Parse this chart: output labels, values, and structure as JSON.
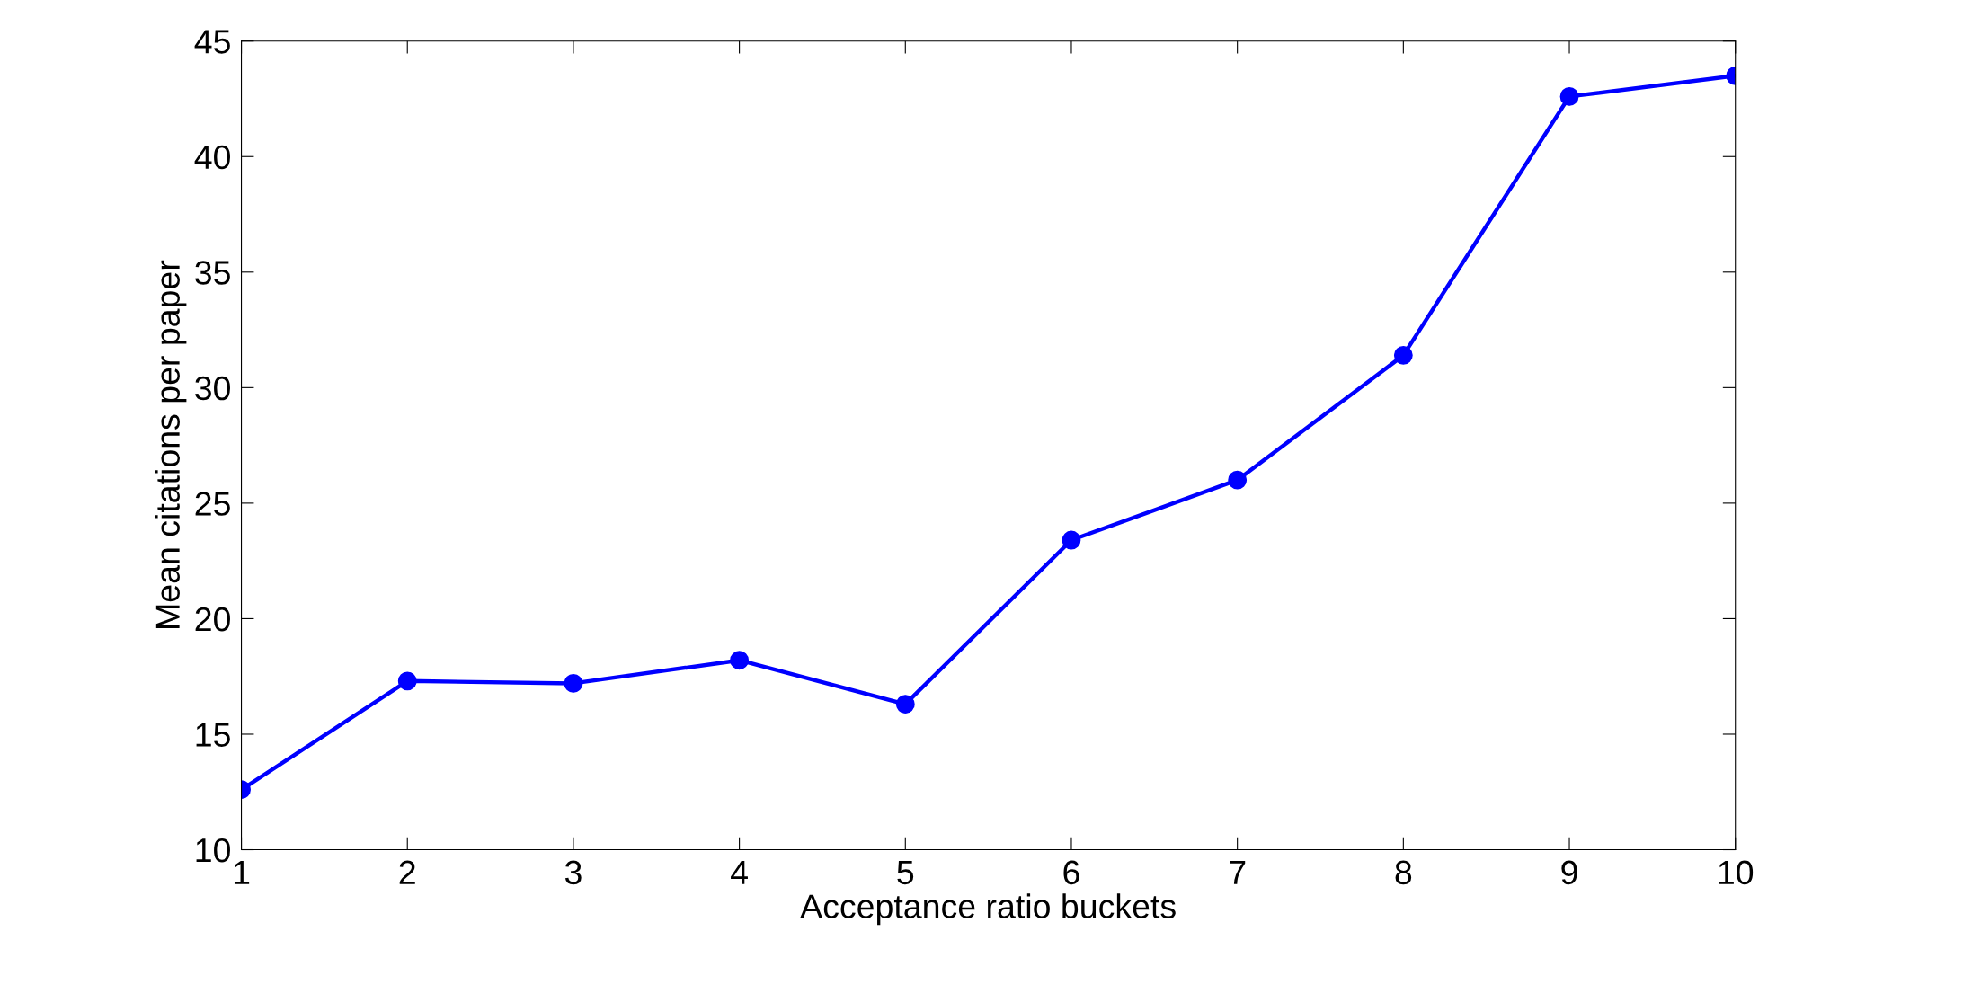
{
  "chart_data": {
    "type": "line",
    "xlabel": "Acceptance ratio buckets",
    "ylabel": "Mean citations per paper",
    "x": [
      1,
      2,
      3,
      4,
      5,
      6,
      7,
      8,
      9,
      10
    ],
    "series": [
      {
        "color": "#0000ff",
        "values": [
          12.6,
          17.3,
          17.2,
          18.2,
          16.3,
          23.4,
          26.0,
          31.4,
          42.6,
          43.5
        ]
      }
    ],
    "xlim": [
      1,
      10
    ],
    "xticks": [
      1,
      2,
      3,
      4,
      5,
      6,
      7,
      8,
      9,
      10
    ],
    "ylim": [
      10,
      45
    ],
    "yticks": [
      10,
      15,
      20,
      25,
      30,
      35,
      40,
      45
    ],
    "marker": "circle",
    "line_style": "solid",
    "grid": false,
    "legend": false
  }
}
